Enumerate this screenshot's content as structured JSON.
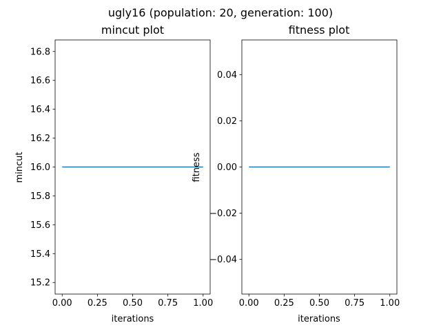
{
  "figure": {
    "suptitle": "ugly16 (population: 20, generation: 100)"
  },
  "chart_data": [
    {
      "type": "line",
      "title": "mincut plot",
      "xlabel": "iterations",
      "ylabel": "mincut",
      "xlim": [
        -0.05,
        1.05
      ],
      "ylim": [
        15.12,
        16.88
      ],
      "xticks": [
        0.0,
        0.25,
        0.5,
        0.75,
        1.0
      ],
      "xtick_labels": [
        "0.00",
        "0.25",
        "0.50",
        "0.75",
        "1.00"
      ],
      "yticks": [
        15.2,
        15.4,
        15.6,
        15.8,
        16.0,
        16.2,
        16.4,
        16.6,
        16.8
      ],
      "ytick_labels": [
        "15.2",
        "15.4",
        "15.6",
        "15.8",
        "16.0",
        "16.2",
        "16.4",
        "16.6",
        "16.8"
      ],
      "grid": false,
      "series": [
        {
          "x": [
            0,
            1
          ],
          "values": [
            16.0,
            16.0
          ],
          "color": "#1f77b4"
        }
      ]
    },
    {
      "type": "line",
      "title": "fitness plot",
      "xlabel": "iterations",
      "ylabel": "fitness",
      "xlim": [
        -0.05,
        1.05
      ],
      "ylim": [
        -0.055,
        0.055
      ],
      "xticks": [
        0.0,
        0.25,
        0.5,
        0.75,
        1.0
      ],
      "xtick_labels": [
        "0.00",
        "0.25",
        "0.50",
        "0.75",
        "1.00"
      ],
      "yticks": [
        -0.04,
        -0.02,
        0.0,
        0.02,
        0.04
      ],
      "ytick_labels": [
        "−0.04",
        "−0.02",
        "0.00",
        "0.02",
        "0.04"
      ],
      "grid": false,
      "series": [
        {
          "x": [
            0,
            1
          ],
          "values": [
            0.0,
            0.0
          ],
          "color": "#1f77b4"
        }
      ]
    }
  ]
}
